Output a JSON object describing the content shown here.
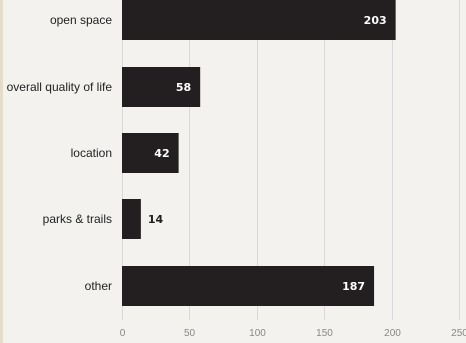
{
  "chart_data": {
    "type": "bar",
    "orientation": "horizontal",
    "categories": [
      "open space",
      "overall quality of life",
      "location",
      "parks & trails",
      "other"
    ],
    "values": [
      203,
      58,
      42,
      14,
      187
    ],
    "value_labels": [
      "203",
      "58",
      "42",
      "14",
      "187"
    ],
    "xlim": [
      0,
      250
    ],
    "x_ticks": [
      0,
      50,
      100,
      150,
      200,
      250
    ],
    "x_tick_labels": [
      "0",
      "50",
      "100",
      "150",
      "200",
      "250"
    ],
    "grid": "vertical",
    "title": "",
    "xlabel": "",
    "ylabel": "",
    "colors": {
      "bar": "#231f20",
      "value_label_inside": "#ffffff",
      "value_label_outside": "#231f20"
    }
  }
}
